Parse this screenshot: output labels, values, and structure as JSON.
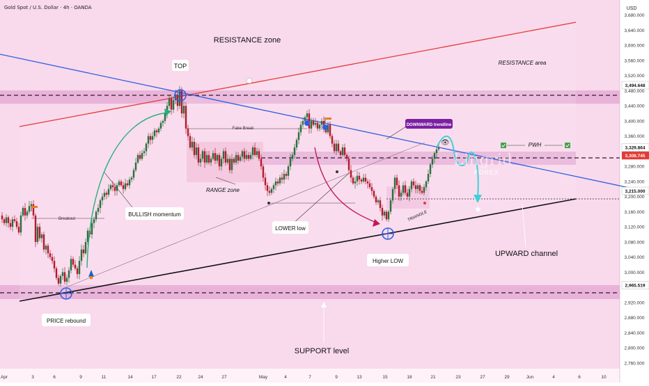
{
  "header": {
    "symbol": "Gold Spot / U.S. Dollar · 4h · OANDA"
  },
  "axis": {
    "currency": "USD",
    "y_ticks": [
      2760,
      2800,
      2840,
      2880,
      2920,
      2960,
      3000,
      3040,
      3080,
      3120,
      3160,
      3200,
      3240,
      3280,
      3320,
      3360,
      3400,
      3440,
      3480,
      3520,
      3560,
      3600,
      3640,
      3680
    ],
    "x_ticks": [
      "Apr",
      "3",
      "6",
      "9",
      "11",
      "14",
      "17",
      "22",
      "24",
      "27",
      "May",
      "4",
      "7",
      "9",
      "13",
      "15",
      "18",
      "21",
      "23",
      "27",
      "29",
      "Jun",
      "4",
      "6",
      "10"
    ]
  },
  "price_tags": [
    {
      "value": "3,494.648",
      "bg": "#ffffff",
      "fg": "#111111"
    },
    {
      "value": "3,329.864",
      "bg": "#ffffff",
      "fg": "#111111"
    },
    {
      "value": "3,308.745",
      "bg": "#e53935",
      "fg": "#ffffff"
    },
    {
      "value": "3,215.000",
      "bg": "#ffffff",
      "fg": "#111111"
    },
    {
      "value": "2,965.519",
      "bg": "#ffffff",
      "fg": "#111111"
    }
  ],
  "labels": {
    "resistance_zone": "RESISTANCE zone",
    "resistance_area": "RESISTANCE area",
    "top": "TOP",
    "fake_break": "Fake Break",
    "downward_trendline": "DOWNWARD trendline",
    "pwh": "PWH",
    "range_zone": "RANGE zone",
    "bullish_momentum": "BULLISH momentum",
    "breakout": "Breakout",
    "lower_low": "LOWER low",
    "triangle": "TRIANGLE",
    "higher_low": "Higher LOW",
    "upward_channel": "UPWARD channel",
    "price_rebound": "PRICE rebound",
    "support_level": "SUPPORT level",
    "logo": "Lingrid",
    "logo_sub": "FOREX"
  },
  "colors": {
    "background": "#f9d9ec",
    "zone": "#e3a6d3",
    "resistance_line": "#e53935",
    "downtrend_line": "#2f5fe0",
    "uptrend_line": "#111111",
    "bull_candle": "#2a6e3c",
    "bear_candle": "#b3192c",
    "projection": "#40d0d8"
  },
  "chart_data": {
    "type": "candlestick",
    "symbol": "Gold Spot / U.S. Dollar",
    "timeframe": "4h",
    "ylim": [
      2745,
      3720
    ],
    "levels": [
      3494.648,
      3329.864,
      3308.745,
      3215.0,
      2965.519
    ],
    "close_path": [
      [
        0,
        3150
      ],
      [
        3,
        3140
      ],
      [
        6,
        3130
      ],
      [
        9,
        3145
      ],
      [
        12,
        3130
      ],
      [
        15,
        3120
      ],
      [
        18,
        3140
      ],
      [
        21,
        3135
      ],
      [
        24,
        3120
      ],
      [
        27,
        3105
      ],
      [
        30,
        3150
      ],
      [
        33,
        3170
      ],
      [
        36,
        3150
      ],
      [
        39,
        3160
      ],
      [
        42,
        3175
      ],
      [
        45,
        3180
      ],
      [
        48,
        3150
      ],
      [
        51,
        3080
      ],
      [
        54,
        3120
      ],
      [
        57,
        3090
      ],
      [
        60,
        3100
      ],
      [
        63,
        3060
      ],
      [
        66,
        3070
      ],
      [
        69,
        3050
      ],
      [
        72,
        3040
      ],
      [
        75,
        3030
      ],
      [
        78,
        3010
      ],
      [
        81,
        2985
      ],
      [
        84,
        2970
      ],
      [
        87,
        2990
      ],
      [
        90,
        3000
      ],
      [
        93,
        2975
      ],
      [
        96,
        2985
      ],
      [
        99,
        3005
      ],
      [
        102,
        3035
      ],
      [
        105,
        3020
      ],
      [
        108,
        3010
      ],
      [
        111,
        2995
      ],
      [
        114,
        3030
      ],
      [
        117,
        3060
      ],
      [
        120,
        3050
      ],
      [
        123,
        3080
      ],
      [
        126,
        3110
      ],
      [
        129,
        3100
      ],
      [
        132,
        3130
      ],
      [
        135,
        3140
      ],
      [
        138,
        3160
      ],
      [
        141,
        3170
      ],
      [
        144,
        3190
      ],
      [
        147,
        3200
      ],
      [
        150,
        3210
      ],
      [
        153,
        3205
      ],
      [
        156,
        3220
      ],
      [
        159,
        3230
      ],
      [
        162,
        3225
      ],
      [
        165,
        3215
      ],
      [
        168,
        3230
      ],
      [
        171,
        3240
      ],
      [
        174,
        3230
      ],
      [
        177,
        3220
      ],
      [
        180,
        3235
      ],
      [
        183,
        3230
      ],
      [
        186,
        3245
      ],
      [
        189,
        3250
      ],
      [
        192,
        3270
      ],
      [
        195,
        3290
      ],
      [
        198,
        3310
      ],
      [
        201,
        3300
      ],
      [
        204,
        3315
      ],
      [
        207,
        3320
      ],
      [
        210,
        3340
      ],
      [
        213,
        3360
      ],
      [
        216,
        3350
      ],
      [
        219,
        3360
      ],
      [
        222,
        3375
      ],
      [
        225,
        3370
      ],
      [
        228,
        3380
      ],
      [
        231,
        3395
      ],
      [
        234,
        3400
      ],
      [
        237,
        3420
      ],
      [
        240,
        3440
      ],
      [
        243,
        3460
      ],
      [
        246,
        3430
      ],
      [
        249,
        3455
      ],
      [
        252,
        3470
      ],
      [
        255,
        3440
      ],
      [
        258,
        3480
      ],
      [
        261,
        3420
      ],
      [
        264,
        3440
      ],
      [
        267,
        3380
      ],
      [
        270,
        3360
      ],
      [
        273,
        3330
      ],
      [
        276,
        3345
      ],
      [
        279,
        3310
      ],
      [
        282,
        3330
      ],
      [
        285,
        3290
      ],
      [
        288,
        3300
      ],
      [
        291,
        3320
      ],
      [
        294,
        3290
      ],
      [
        297,
        3310
      ],
      [
        300,
        3290
      ],
      [
        303,
        3300
      ],
      [
        306,
        3315
      ],
      [
        309,
        3295
      ],
      [
        312,
        3310
      ],
      [
        315,
        3280
      ],
      [
        318,
        3300
      ],
      [
        321,
        3320
      ],
      [
        324,
        3290
      ],
      [
        327,
        3300
      ],
      [
        330,
        3270
      ],
      [
        333,
        3300
      ],
      [
        336,
        3290
      ],
      [
        339,
        3310
      ],
      [
        342,
        3295
      ],
      [
        345,
        3305
      ],
      [
        348,
        3320
      ],
      [
        351,
        3300
      ],
      [
        354,
        3310
      ],
      [
        357,
        3300
      ],
      [
        360,
        3310
      ],
      [
        363,
        3330
      ],
      [
        366,
        3310
      ],
      [
        369,
        3320
      ],
      [
        372,
        3300
      ],
      [
        375,
        3280
      ],
      [
        378,
        3250
      ],
      [
        381,
        3230
      ],
      [
        384,
        3215
      ],
      [
        387,
        3210
      ],
      [
        390,
        3220
      ],
      [
        393,
        3230
      ],
      [
        396,
        3240
      ],
      [
        399,
        3235
      ],
      [
        402,
        3250
      ],
      [
        405,
        3245
      ],
      [
        408,
        3260
      ],
      [
        411,
        3255
      ],
      [
        414,
        3280
      ],
      [
        417,
        3300
      ],
      [
        420,
        3310
      ],
      [
        423,
        3330
      ],
      [
        426,
        3350
      ],
      [
        429,
        3370
      ],
      [
        432,
        3390
      ],
      [
        435,
        3400
      ],
      [
        438,
        3410
      ],
      [
        441,
        3420
      ],
      [
        444,
        3380
      ],
      [
        447,
        3400
      ],
      [
        450,
        3390
      ],
      [
        453,
        3395
      ],
      [
        456,
        3380
      ],
      [
        459,
        3390
      ],
      [
        462,
        3400
      ],
      [
        465,
        3380
      ],
      [
        468,
        3370
      ],
      [
        471,
        3390
      ],
      [
        474,
        3360
      ],
      [
        477,
        3340
      ],
      [
        480,
        3320
      ],
      [
        483,
        3340
      ],
      [
        486,
        3320
      ],
      [
        489,
        3310
      ],
      [
        492,
        3330
      ],
      [
        495,
        3310
      ],
      [
        498,
        3300
      ],
      [
        501,
        3270
      ],
      [
        504,
        3250
      ],
      [
        507,
        3235
      ],
      [
        510,
        3240
      ],
      [
        513,
        3255
      ],
      [
        516,
        3245
      ],
      [
        519,
        3240
      ],
      [
        522,
        3250
      ],
      [
        525,
        3240
      ],
      [
        528,
        3235
      ],
      [
        531,
        3225
      ],
      [
        534,
        3215
      ],
      [
        537,
        3200
      ],
      [
        540,
        3185
      ],
      [
        543,
        3190
      ],
      [
        546,
        3170
      ],
      [
        549,
        3150
      ],
      [
        552,
        3160
      ],
      [
        555,
        3140
      ],
      [
        558,
        3160
      ],
      [
        561,
        3190
      ],
      [
        564,
        3220
      ],
      [
        567,
        3250
      ],
      [
        570,
        3230
      ],
      [
        573,
        3200
      ],
      [
        576,
        3210
      ],
      [
        579,
        3230
      ],
      [
        582,
        3210
      ],
      [
        585,
        3200
      ],
      [
        588,
        3220
      ],
      [
        591,
        3240
      ],
      [
        594,
        3230
      ],
      [
        597,
        3220
      ],
      [
        600,
        3230
      ],
      [
        603,
        3215
      ],
      [
        606,
        3210
      ],
      [
        609,
        3225
      ],
      [
        612,
        3240
      ],
      [
        615,
        3260
      ],
      [
        618,
        3285
      ],
      [
        621,
        3300
      ],
      [
        624,
        3315
      ],
      [
        627,
        3325
      ],
      [
        630,
        3330
      ]
    ],
    "swing_points": [
      {
        "label": "TOP",
        "x": 259,
        "y": 3495
      },
      {
        "label": "PRICE rebound",
        "x": 95,
        "y": 2965
      },
      {
        "label": "Higher LOW",
        "x": 557,
        "y": 3128
      }
    ]
  }
}
